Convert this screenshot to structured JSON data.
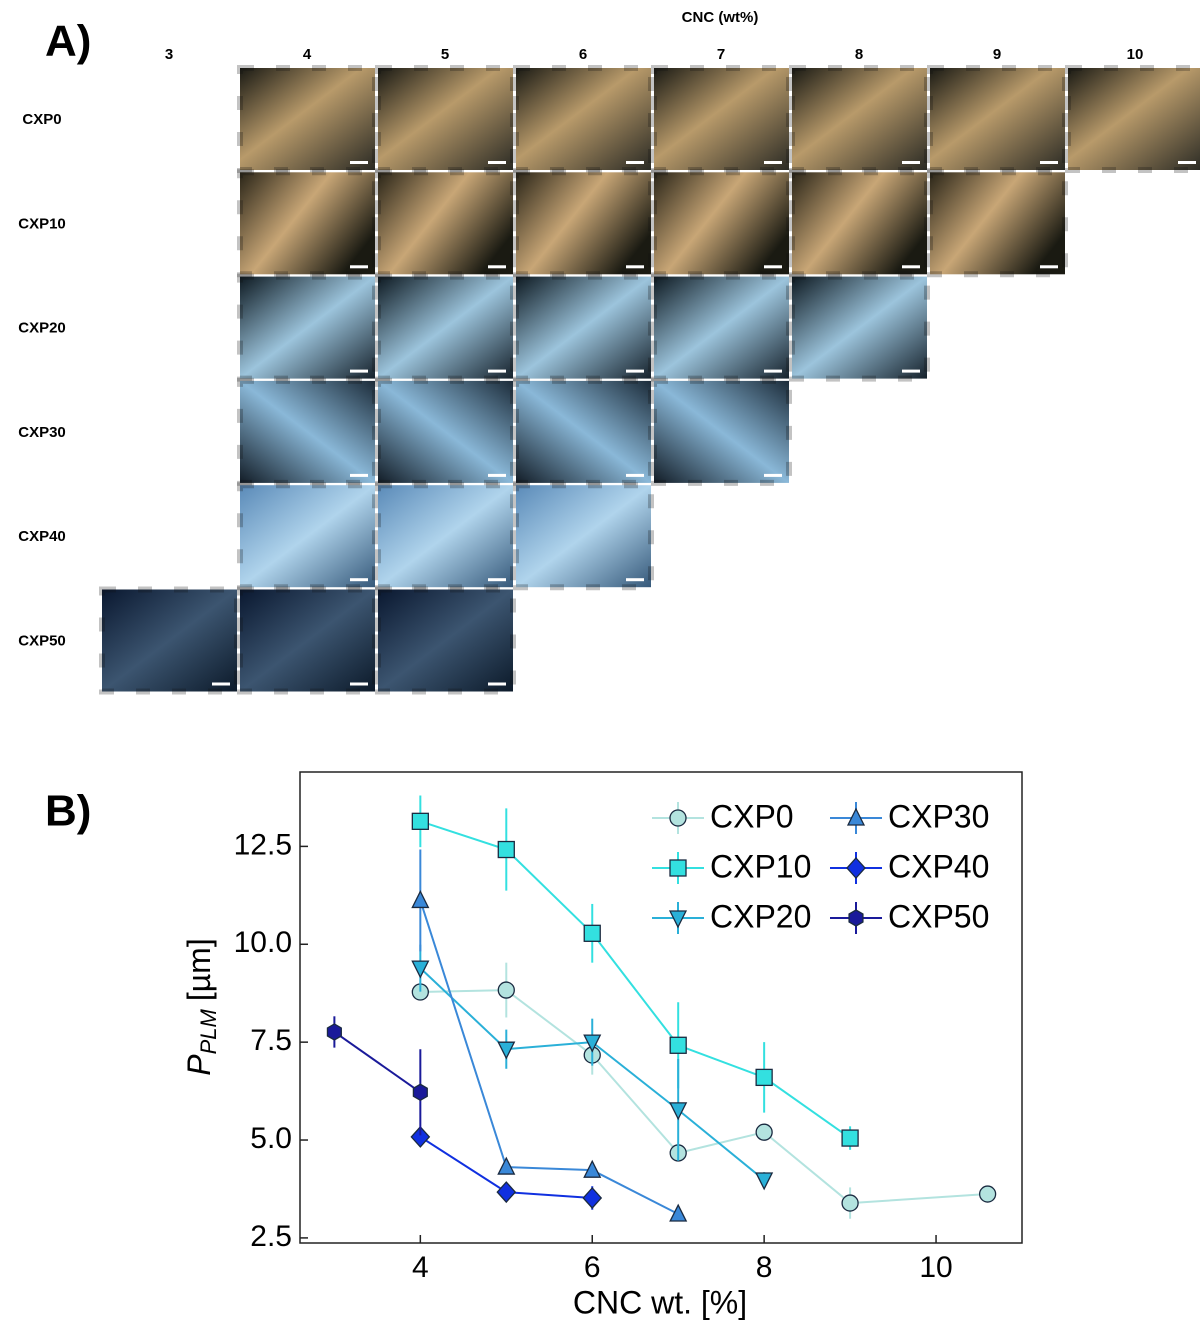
{
  "panel_a": {
    "label": "A)",
    "title": "CNC (wt%)",
    "columns": [
      "3",
      "4",
      "5",
      "6",
      "7",
      "8",
      "9",
      "10"
    ],
    "rows": [
      "CXP0",
      "CXP10",
      "CXP20",
      "CXP30",
      "CXP40",
      "CXP50"
    ]
  },
  "chart_data": {
    "type": "line",
    "panel_label": "B)",
    "x_label": "CNC wt. [%]",
    "y_label": {
      "main": "P",
      "sub": "PLM",
      "unit": "[µm]"
    },
    "xlim": [
      2.6,
      11.0
    ],
    "ylim": [
      2.37,
      14.4
    ],
    "xticks": [
      4,
      6,
      8,
      10
    ],
    "yticks": [
      2.5,
      {
        "value": 5,
        "label": "5.0"
      },
      7.5,
      {
        "value": 10,
        "label": "10.0"
      },
      12.5
    ],
    "grid": false,
    "legend": "upper right",
    "legend_columns": 2,
    "series": [
      {
        "name": "CXP0",
        "color": "#b3e3df",
        "marker": "circle",
        "x": [
          4,
          5,
          6,
          7,
          8,
          9,
          10.6
        ],
        "values": [
          8.78,
          8.83,
          7.17,
          4.67,
          5.2,
          3.39,
          3.62
        ],
        "errors": [
          0.2,
          0.7,
          0.5,
          0.2,
          0.2,
          0.4,
          0.15
        ]
      },
      {
        "name": "CXP10",
        "color": "#33e0e0",
        "marker": "square",
        "x": [
          4,
          5,
          6,
          7,
          8,
          9
        ],
        "values": [
          13.14,
          12.42,
          10.28,
          7.42,
          6.6,
          5.05
        ],
        "errors": [
          0.66,
          1.05,
          0.75,
          1.1,
          0.9,
          0.3
        ]
      },
      {
        "name": "CXP20",
        "color": "#2ab0d8",
        "marker": "triangle-down",
        "x": [
          4,
          5,
          6,
          7,
          8
        ],
        "values": [
          9.39,
          7.32,
          7.5,
          5.77,
          3.98
        ],
        "errors": [
          0.6,
          0.5,
          0.6,
          1.3,
          0.2
        ]
      },
      {
        "name": "CXP30",
        "color": "#3a88d8",
        "marker": "triangle-up",
        "x": [
          4,
          5,
          6,
          7
        ],
        "values": [
          11.12,
          4.31,
          4.23,
          3.11
        ],
        "errors": [
          1.3,
          0.15,
          0.15,
          0.1
        ]
      },
      {
        "name": "CXP40",
        "color": "#1030e0",
        "marker": "diamond",
        "x": [
          4,
          5,
          6
        ],
        "values": [
          5.08,
          3.67,
          3.52
        ],
        "errors": [
          0.25,
          0.2,
          0.3
        ]
      },
      {
        "name": "CXP50",
        "color": "#1a1a9a",
        "marker": "hexagon",
        "x": [
          3,
          4
        ],
        "values": [
          7.76,
          6.22
        ],
        "errors": [
          0.4,
          1.1
        ]
      }
    ]
  }
}
